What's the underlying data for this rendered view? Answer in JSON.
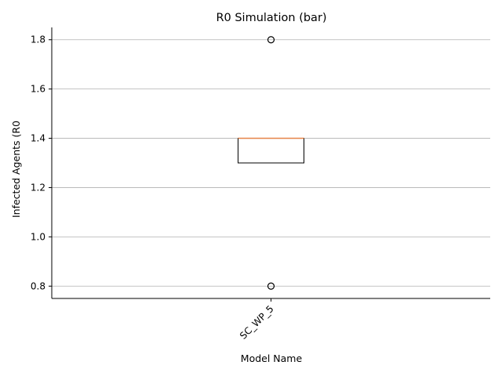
{
  "chart_data": {
    "type": "box",
    "title": "R0 Simulation (bar)",
    "xlabel": "Model Name",
    "ylabel": "Infected Agents (R0",
    "categories": [
      "SC_WP_5"
    ],
    "boxes": [
      {
        "name": "SC_WP_5",
        "whisker_low": 1.3,
        "q1": 1.3,
        "median": 1.4,
        "q3": 1.4,
        "whisker_high": 1.4,
        "outliers": [
          1.8,
          0.8
        ]
      }
    ],
    "ylim": [
      0.75,
      1.85
    ],
    "yticks": [
      0.8,
      1.0,
      1.2,
      1.4,
      1.6,
      1.8
    ],
    "ytick_labels": [
      "0.8",
      "1.0",
      "1.2",
      "1.4",
      "1.6",
      "1.8"
    ],
    "grid": "horizontal",
    "colors": {
      "median": "#e8864a",
      "box": "#000000",
      "grid": "#b0b0b0"
    }
  }
}
